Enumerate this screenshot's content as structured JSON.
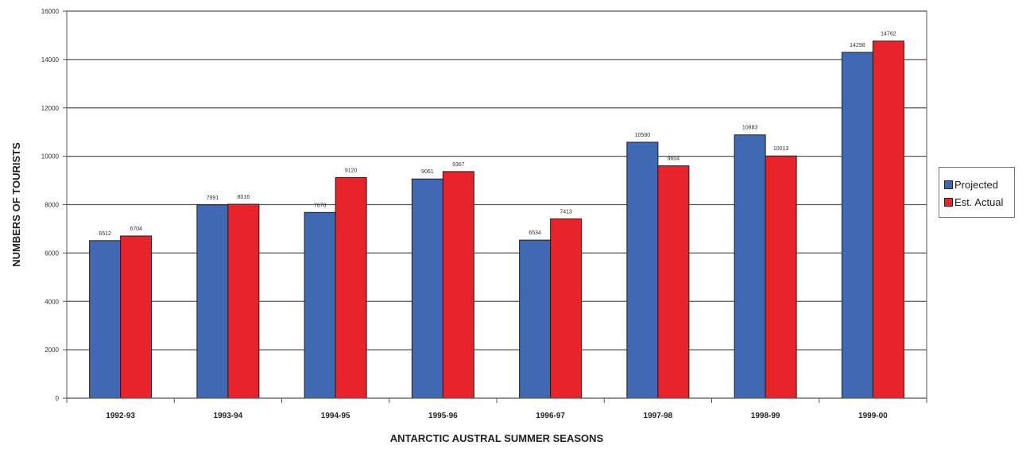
{
  "chart_data": {
    "type": "bar",
    "title": "",
    "xlabel": "ANTARCTIC AUSTRAL SUMMER SEASONS",
    "ylabel": "NUMBERS OF TOURISTS",
    "ylim": [
      0,
      16000
    ],
    "yticks": [
      "0",
      "2000",
      "4000",
      "6000",
      "8000",
      "10000",
      "12000",
      "14000",
      "16000"
    ],
    "grid": true,
    "legend_position": "right",
    "categories": [
      "1992-93",
      "1993-94",
      "1994-95",
      "1995-96",
      "1996-97",
      "1997-98",
      "1998-99",
      "1999-00"
    ],
    "series": [
      {
        "name": "Projected",
        "color": "#4168b3",
        "values": [
          6512,
          7991,
          7678,
          9061,
          6534,
          10580,
          10883,
          14298
        ],
        "labels": [
          "6512",
          "7991",
          "7678",
          "9061",
          "6534",
          "10580",
          "10883",
          "14298"
        ]
      },
      {
        "name": "Est. Actual",
        "color": "#e8232a",
        "values": [
          6704,
          8016,
          9120,
          9367,
          7413,
          9604,
          10013,
          14762
        ],
        "labels": [
          "6704",
          "8016",
          "9120",
          "9367",
          "7413",
          "9604",
          "10013",
          "14762"
        ]
      }
    ]
  }
}
